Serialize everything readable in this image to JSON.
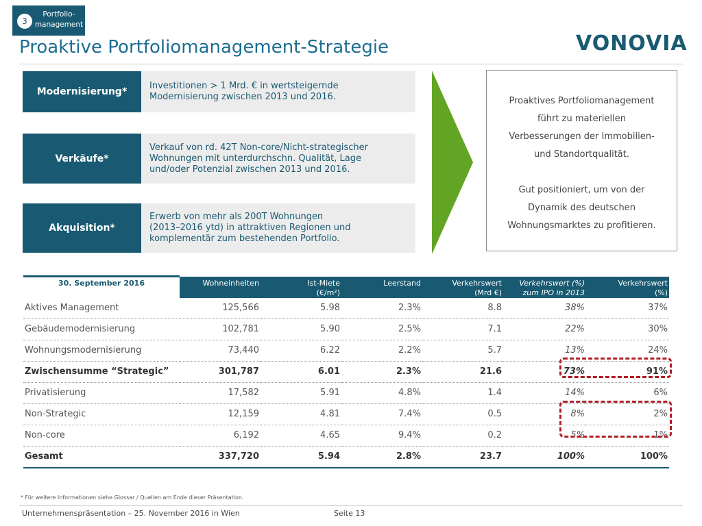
{
  "section": {
    "number": "3",
    "label": "Portfolio-\nmanagement"
  },
  "title": "Proaktive Portfoliomanagement-Strategie",
  "logo": "VONOVIA",
  "strategies": [
    {
      "label": "Modernisierung*",
      "lines": [
        "Investitionen > 1 Mrd. € in wertsteigernde",
        "Modernisierung zwischen 2013 und 2016."
      ]
    },
    {
      "label": "Verkäufe*",
      "lines": [
        "Verkauf von rd. 42T Non-core/Nicht-strategischer",
        "Wohnungen mit unterdurchschn. Qualität, Lage",
        "und/oder Potenzial zwischen 2013 und 2016."
      ]
    },
    {
      "label": "Akquisition*",
      "lines": [
        "Erwerb von mehr als 200T Wohnungen",
        "(2013–2016 ytd) in attraktiven Regionen und",
        "komplementär zum bestehenden Portfolio."
      ]
    }
  ],
  "summary": {
    "paragraph1": [
      "Proaktives Portfoliomanagement",
      "führt zu materiellen",
      "Verbesserungen der Immobilien-",
      "und Standortqualität."
    ],
    "paragraph2": [
      "Gut positioniert, um von der",
      "Dynamik des deutschen",
      "Wohnungsmarktes zu profitieren."
    ]
  },
  "table": {
    "date_header": "30. September 2016",
    "headers": [
      {
        "line1": "Wohneinheiten",
        "line2": ""
      },
      {
        "line1": "Ist-Miete",
        "line2": "(€/m²)"
      },
      {
        "line1": "Leerstand",
        "line2": ""
      },
      {
        "line1": "Verkehrswert",
        "line2": "(Mrd €)"
      },
      {
        "line1": "Verkehrswert (%)",
        "line2": "zum IPO in 2013"
      },
      {
        "line1": "Verkehrswert",
        "line2": "(%)"
      }
    ],
    "rows": [
      {
        "name": "Aktives Management",
        "units": "125,566",
        "rent": "5.98",
        "vacancy": "2.3%",
        "value": "8.8",
        "value_ipo": "38%",
        "value_pct": "37%"
      },
      {
        "name": "Gebäudemodernisierung",
        "units": "102,781",
        "rent": "5.90",
        "vacancy": "2.5%",
        "value": "7.1",
        "value_ipo": "22%",
        "value_pct": "30%"
      },
      {
        "name": "Wohnungsmodernisierung",
        "units": "73,440",
        "rent": "6.22",
        "vacancy": "2.2%",
        "value": "5.7",
        "value_ipo": "13%",
        "value_pct": "24%"
      },
      {
        "name": "Zwischensumme “Strategic”",
        "units": "301,787",
        "rent": "6.01",
        "vacancy": "2.3%",
        "value": "21.6",
        "value_ipo": "73%",
        "value_pct": "91%"
      },
      {
        "name": "Privatisierung",
        "units": "17,582",
        "rent": "5.91",
        "vacancy": "4.8%",
        "value": "1.4",
        "value_ipo": "14%",
        "value_pct": "6%"
      },
      {
        "name": "Non-Strategic",
        "units": "12,159",
        "rent": "4.81",
        "vacancy": "7.4%",
        "value": "0.5",
        "value_ipo": "8%",
        "value_pct": "2%"
      },
      {
        "name": "Non-core",
        "units": "6,192",
        "rent": "4.65",
        "vacancy": "9.4%",
        "value": "0.2",
        "value_ipo": "5%",
        "value_pct": "1%"
      },
      {
        "name": "Gesamt",
        "units": "337,720",
        "rent": "5.94",
        "vacancy": "2.8%",
        "value": "23.7",
        "value_ipo": "100%",
        "value_pct": "100%"
      }
    ]
  },
  "footnote": "* Für weitere Informationen siehe Glossar / Quellen am Ende dieser Präsentation.",
  "footer": {
    "left": "Unternehmenspräsentation – 25. November 2016 in Wien",
    "page": "Seite 13"
  },
  "colors": {
    "primary": "#195a72",
    "title": "#1d6d91",
    "arrow": "#62a524",
    "highlight": "#b01e24",
    "panel": "#ececec"
  }
}
